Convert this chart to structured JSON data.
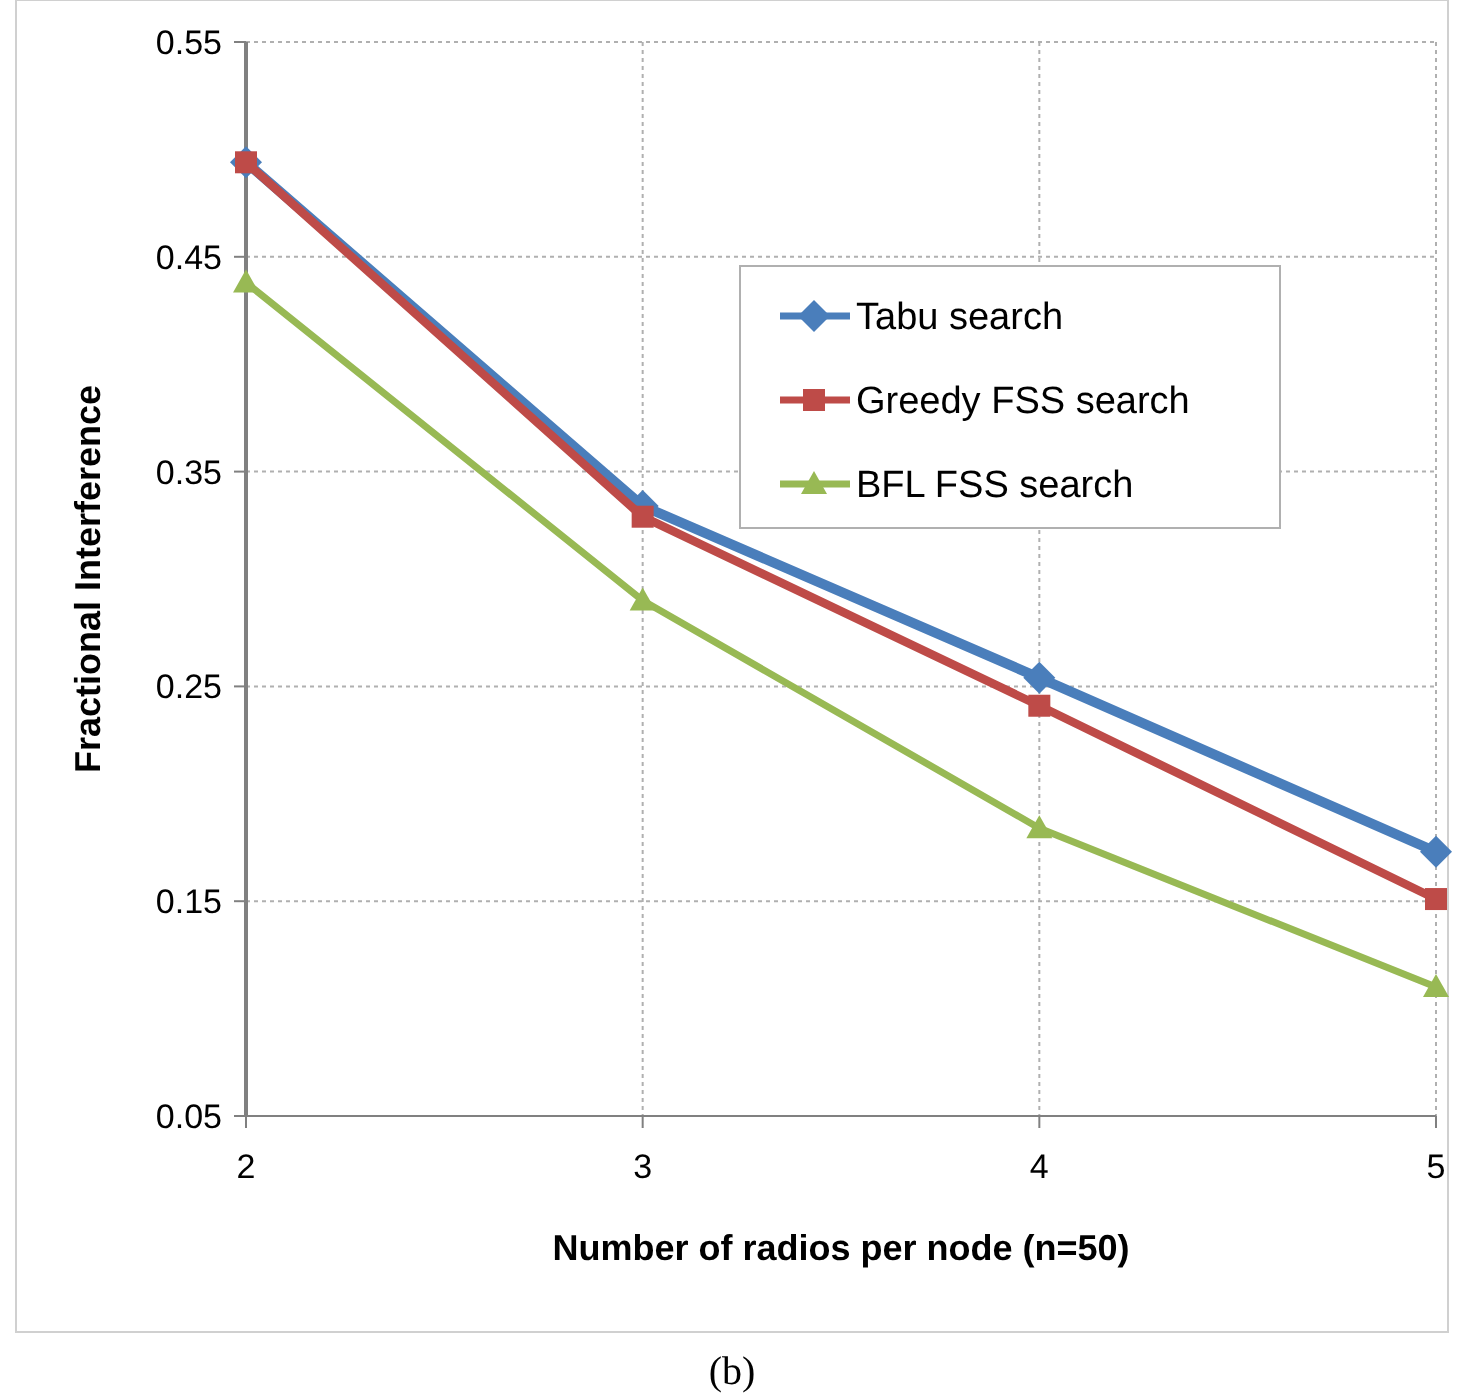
{
  "chart_data": {
    "type": "line",
    "xlabel": "Number of radios per node (n=50)",
    "ylabel": "Fractional Interference",
    "x": [
      2,
      3,
      4,
      5
    ],
    "xlim": [
      2,
      5
    ],
    "xticks": [
      2,
      3,
      4,
      5
    ],
    "ylim": [
      0.05,
      0.55
    ],
    "yticks": [
      0.05,
      0.15,
      0.25,
      0.35,
      0.45,
      0.55
    ],
    "series": [
      {
        "name": "Tabu search",
        "color": "#4a7ebb",
        "marker": "diamond",
        "values": [
          0.494,
          0.334,
          0.254,
          0.173
        ]
      },
      {
        "name": "Greedy FSS search",
        "color": "#be4b48",
        "marker": "square",
        "values": [
          0.494,
          0.329,
          0.241,
          0.151
        ]
      },
      {
        "name": "BFL FSS search",
        "color": "#98b954",
        "marker": "triangle",
        "values": [
          0.438,
          0.29,
          0.184,
          0.11
        ]
      }
    ],
    "grid": true,
    "legend": "top right",
    "annotations": [
      "(b)"
    ]
  }
}
